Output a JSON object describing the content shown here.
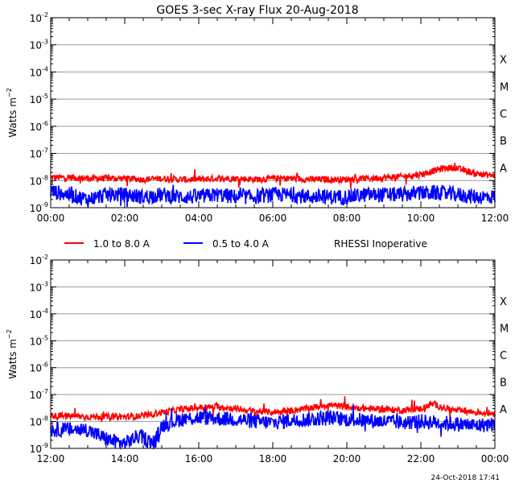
{
  "title": "GOES 3-sec X-ray Flux   20-Aug-2018",
  "footer_timestamp": "24-Oct-2018 17:41",
  "legend": {
    "long_label": "1.0 to 8.0 A",
    "short_label": "0.5 to 4.0 A",
    "note": "RHESSI Inoperative",
    "long_color": "#ff0000",
    "short_color": "#0000ff"
  },
  "chart_data": [
    {
      "type": "line",
      "panel": "top",
      "ylabel": "Watts m^-2",
      "yscale": "log",
      "ylim": [
        1e-09,
        0.01
      ],
      "xlim_hours": [
        0,
        12
      ],
      "x_tick_labels": [
        "00:00",
        "02:00",
        "04:00",
        "06:00",
        "08:00",
        "10:00",
        "12:00"
      ],
      "y_tick_exponents": [
        -9,
        -8,
        -7,
        -6,
        -5,
        -4,
        -3,
        -2
      ],
      "flare_classes": [
        "A",
        "B",
        "C",
        "M",
        "X"
      ],
      "flare_class_exponents": [
        -8,
        -7,
        -6,
        -5,
        -4
      ],
      "series": [
        {
          "name": "1.0 to 8.0 A",
          "color": "#ff0000",
          "x": [
            0,
            0.5,
            1,
            1.5,
            2,
            2.5,
            3,
            3.5,
            4,
            4.5,
            5,
            5.5,
            6,
            6.5,
            7,
            7.5,
            8,
            8.5,
            9,
            9.5,
            10,
            10.3,
            10.6,
            10.9,
            11.2,
            11.5,
            12
          ],
          "values": [
            1.3e-08,
            1.3e-08,
            1.2e-08,
            1.2e-08,
            1.2e-08,
            1.1e-08,
            1.2e-08,
            1.1e-08,
            1.1e-08,
            1.2e-08,
            1.2e-08,
            1.1e-08,
            1.2e-08,
            1.2e-08,
            1.1e-08,
            1.1e-08,
            1.1e-08,
            1.2e-08,
            1.3e-08,
            1.4e-08,
            1.7e-08,
            2.2e-08,
            2.8e-08,
            3e-08,
            2.3e-08,
            1.8e-08,
            1.5e-08
          ]
        },
        {
          "name": "0.5 to 4.0 A",
          "color": "#0000ff",
          "x": [
            0,
            0.5,
            1,
            1.5,
            2,
            2.5,
            3,
            3.5,
            4,
            4.5,
            5,
            5.5,
            6,
            6.5,
            7,
            7.5,
            8,
            8.5,
            9,
            9.5,
            10,
            10.5,
            11,
            11.5,
            12
          ],
          "values": [
            4e-09,
            3e-09,
            2e-09,
            3e-09,
            3e-09,
            2.5e-09,
            3e-09,
            2.5e-09,
            2.5e-09,
            3e-09,
            2.5e-09,
            2.5e-09,
            3e-09,
            3e-09,
            2.5e-09,
            2.5e-09,
            2.5e-09,
            3e-09,
            3e-09,
            3e-09,
            3.5e-09,
            3.5e-09,
            3e-09,
            2.5e-09,
            2.5e-09
          ]
        }
      ]
    },
    {
      "type": "line",
      "panel": "bottom",
      "ylabel": "Watts m^-2",
      "yscale": "log",
      "ylim": [
        1e-09,
        0.01
      ],
      "xlim_hours": [
        12,
        24
      ],
      "x_tick_labels": [
        "12:00",
        "14:00",
        "16:00",
        "18:00",
        "20:00",
        "22:00",
        "00:00"
      ],
      "y_tick_exponents": [
        -9,
        -8,
        -7,
        -6,
        -5,
        -4,
        -3,
        -2
      ],
      "flare_classes": [
        "A",
        "B",
        "C",
        "M",
        "X"
      ],
      "flare_class_exponents": [
        -8,
        -7,
        -6,
        -5,
        -4
      ],
      "series": [
        {
          "name": "1.0 to 8.0 A",
          "color": "#ff0000",
          "x": [
            12,
            12.5,
            13,
            13.5,
            14,
            14.5,
            15,
            15.5,
            16,
            16.5,
            17,
            17.5,
            18,
            18.5,
            19,
            19.5,
            20,
            20.5,
            21,
            21.5,
            22,
            22.3,
            22.7,
            23,
            23.5,
            24
          ],
          "values": [
            1.6e-08,
            1.6e-08,
            1.5e-08,
            1.5e-08,
            1.5e-08,
            1.6e-08,
            2.2e-08,
            2.8e-08,
            3.3e-08,
            3.5e-08,
            3e-08,
            2.4e-08,
            2.2e-08,
            2.5e-08,
            3.2e-08,
            4.2e-08,
            3.4e-08,
            3e-08,
            2.8e-08,
            2.6e-08,
            3e-08,
            4.5e-08,
            3e-08,
            2.5e-08,
            2.2e-08,
            2e-08
          ]
        },
        {
          "name": "0.5 to 4.0 A",
          "color": "#0000ff",
          "x": [
            12,
            12.5,
            13,
            13.3,
            13.6,
            14,
            14.4,
            14.8,
            15,
            15.5,
            16,
            16.5,
            17,
            17.5,
            18,
            18.5,
            19,
            19.5,
            20,
            20.5,
            21,
            21.5,
            22,
            22.5,
            23,
            23.5,
            24
          ],
          "values": [
            5e-09,
            5e-09,
            5e-09,
            3e-09,
            2e-09,
            1.5e-09,
            3e-09,
            1.5e-09,
            7e-09,
            1.2e-08,
            1.4e-08,
            1.3e-08,
            1.2e-08,
            1e-08,
            9e-09,
            1.1e-08,
            1.2e-08,
            1.4e-08,
            1.2e-08,
            1.1e-08,
            1e-08,
            9e-09,
            1e-08,
            9e-09,
            8e-09,
            7e-09,
            8e-09
          ]
        }
      ]
    }
  ]
}
